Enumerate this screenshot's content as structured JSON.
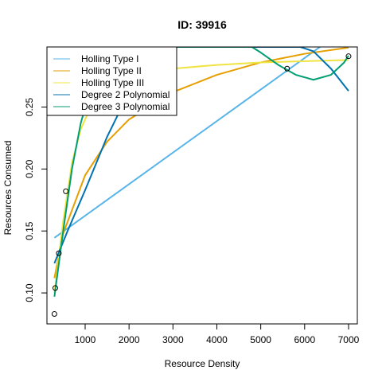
{
  "chart_data": {
    "type": "scatter",
    "title": "ID: 39916",
    "xlabel": "Resource Density",
    "ylabel": "Resources Consumed",
    "xlim": [
      130,
      7200
    ],
    "ylim": [
      0.075,
      0.2985
    ],
    "x_ticks": [
      1000,
      2000,
      3000,
      4000,
      5000,
      6000,
      7000
    ],
    "y_ticks": [
      0.1,
      0.15,
      0.2,
      0.25
    ],
    "x_tick_labels": [
      "1000",
      "2000",
      "3000",
      "4000",
      "5000",
      "6000",
      "7000"
    ],
    "y_tick_labels": [
      "0.10",
      "0.15",
      "0.20",
      "0.25"
    ],
    "points": [
      {
        "x": 300,
        "y": 0.083
      },
      {
        "x": 320,
        "y": 0.104
      },
      {
        "x": 400,
        "y": 0.132
      },
      {
        "x": 560,
        "y": 0.182
      },
      {
        "x": 5600,
        "y": 0.281
      },
      {
        "x": 7000,
        "y": 0.291
      }
    ],
    "series": [
      {
        "name": "Holling Type I",
        "color": "#56B4E9",
        "points": [
          [
            300,
            0.1445
          ],
          [
            6350,
            0.2985
          ]
        ]
      },
      {
        "name": "Holling Type II",
        "color": "#E69F00",
        "points": [
          [
            300,
            0.112
          ],
          [
            500,
            0.148
          ],
          [
            1000,
            0.195
          ],
          [
            1500,
            0.222
          ],
          [
            2000,
            0.24
          ],
          [
            3000,
            0.262
          ],
          [
            4000,
            0.276
          ],
          [
            5000,
            0.286
          ],
          [
            6000,
            0.293
          ],
          [
            7000,
            0.298
          ]
        ]
      },
      {
        "name": "Holling Type III",
        "color": "#F0E442",
        "points": [
          [
            300,
            0.1
          ],
          [
            500,
            0.158
          ],
          [
            700,
            0.205
          ],
          [
            900,
            0.232
          ],
          [
            1100,
            0.248
          ],
          [
            1500,
            0.264
          ],
          [
            2000,
            0.273
          ],
          [
            3000,
            0.281
          ],
          [
            4000,
            0.284
          ],
          [
            5000,
            0.286
          ],
          [
            6000,
            0.287
          ],
          [
            7000,
            0.288
          ]
        ]
      },
      {
        "name": "Degree 2 Polynomial",
        "color": "#0072B2",
        "points": [
          [
            300,
            0.124
          ],
          [
            600,
            0.15
          ],
          [
            1000,
            0.183
          ],
          [
            1500,
            0.226
          ],
          [
            2000,
            0.262
          ],
          [
            2500,
            0.292
          ],
          [
            2630,
            0.2985
          ],
          [
            5900,
            0.2985
          ],
          [
            6200,
            0.295
          ],
          [
            6600,
            0.281
          ],
          [
            7000,
            0.263
          ]
        ]
      },
      {
        "name": "Degree 3 Polynomial",
        "color": "#009E73",
        "points": [
          [
            300,
            0.097
          ],
          [
            500,
            0.15
          ],
          [
            700,
            0.2
          ],
          [
            900,
            0.237
          ],
          [
            1100,
            0.262
          ],
          [
            1400,
            0.288
          ],
          [
            1600,
            0.2985
          ],
          [
            4800,
            0.2985
          ],
          [
            5000,
            0.294
          ],
          [
            5400,
            0.284
          ],
          [
            5800,
            0.276
          ],
          [
            6200,
            0.272
          ],
          [
            6600,
            0.276
          ],
          [
            6900,
            0.286
          ],
          [
            7000,
            0.2915
          ]
        ]
      }
    ],
    "legend": {
      "position": "top-left",
      "entries": [
        "Holling Type I",
        "Holling Type II",
        "Holling Type III",
        "Degree 2 Polynomial",
        "Degree 3 Polynomial"
      ]
    }
  }
}
